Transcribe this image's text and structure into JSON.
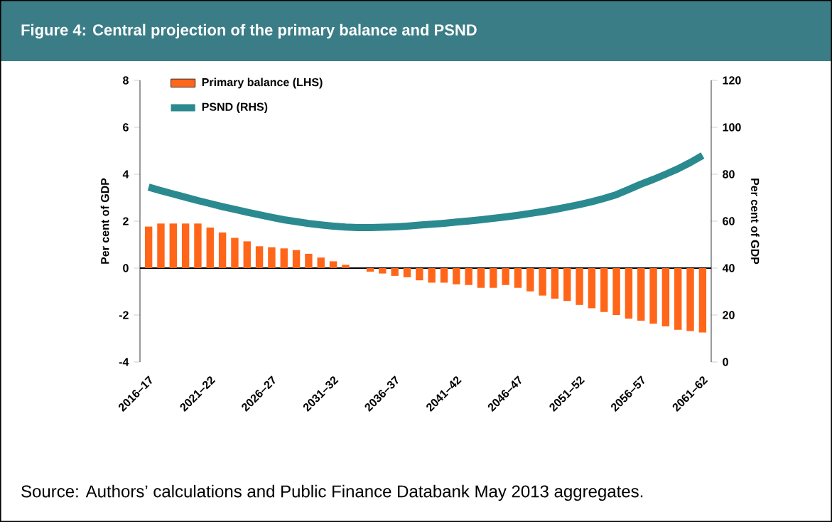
{
  "chart_data": {
    "type": "bar",
    "title": "Figure 4: Central projection of the primary balance and PSND",
    "categories": [
      "2016–17",
      null,
      null,
      null,
      null,
      "2021–22",
      null,
      null,
      null,
      null,
      "2026–27",
      null,
      null,
      null,
      null,
      "2031–32",
      null,
      null,
      null,
      null,
      "2036–37",
      null,
      null,
      null,
      null,
      "2041–42",
      null,
      null,
      null,
      null,
      "2046–47",
      null,
      null,
      null,
      null,
      "2051–52",
      null,
      null,
      null,
      null,
      "2056–57",
      null,
      null,
      null,
      null,
      "2061–62"
    ],
    "series": [
      {
        "name": "Primary balance (LHS)",
        "color": "#ff6619",
        "values": [
          1.77,
          1.9,
          1.9,
          1.9,
          1.9,
          1.73,
          1.52,
          1.29,
          1.14,
          0.93,
          0.89,
          0.84,
          0.77,
          0.61,
          0.45,
          0.29,
          0.14,
          0,
          -0.15,
          -0.23,
          -0.33,
          -0.39,
          -0.52,
          -0.62,
          -0.62,
          -0.69,
          -0.72,
          -0.84,
          -0.84,
          -0.72,
          -0.84,
          -0.99,
          -1.17,
          -1.3,
          -1.4,
          -1.57,
          -1.71,
          -1.87,
          -2.0,
          -2.15,
          -2.24,
          -2.37,
          -2.48,
          -2.63,
          -2.68,
          -2.74
        ]
      },
      {
        "name": "PSND (RHS)",
        "type": "line",
        "axis": "y2",
        "color": "#2a8a8f",
        "values": [
          74.5,
          73.0,
          71.6,
          70.2,
          68.8,
          67.5,
          66.2,
          65.0,
          63.8,
          62.7,
          61.6,
          60.6,
          59.8,
          59.0,
          58.4,
          57.9,
          57.5,
          57.3,
          57.3,
          57.4,
          57.6,
          57.9,
          58.3,
          58.7,
          59.1,
          59.6,
          60.1,
          60.6,
          61.2,
          61.8,
          62.5,
          63.3,
          64.1,
          65.0,
          66.0,
          67.1,
          68.3,
          69.7,
          71.3,
          73.5,
          75.8,
          77.8,
          80.0,
          82.3,
          85.0,
          88.0
        ]
      }
    ],
    "ylabel": "Per cent of GDP",
    "y2label": "Per cent of GDP",
    "ylim": [
      -4,
      8
    ],
    "yticks": [
      -4,
      -2,
      0,
      2,
      4,
      6,
      8
    ],
    "y2lim": [
      0,
      120
    ],
    "y2ticks": [
      0,
      20,
      40,
      60,
      80,
      100,
      120
    ],
    "legend": "top left",
    "grid": false,
    "ref_lines": [
      {
        "axis": "y",
        "value": 0,
        "color": "#000000"
      }
    ],
    "annotations": [
      "Source: Authors’ calculations and Public Finance Databank May 2013 aggregates."
    ]
  }
}
